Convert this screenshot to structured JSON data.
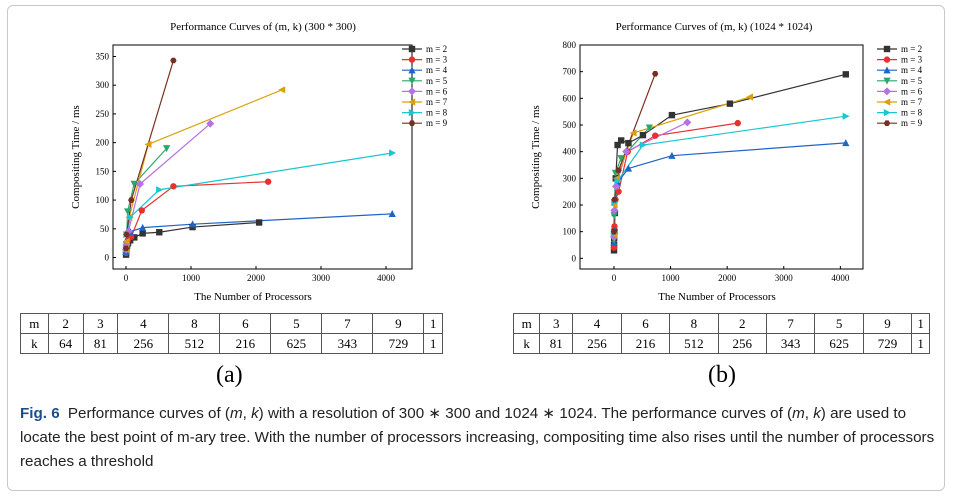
{
  "figure": {
    "panel_a_label": "(a)",
    "panel_b_label": "(b)",
    "caption": {
      "label": "Fig. 6",
      "part1": "Performance curves of (",
      "m": "m",
      "comma": ", ",
      "k": "k",
      "part2": ") with a resolution of 300 ∗ 300 and 1024 ∗ 1024. The performance curves of (",
      "part3": ") are used to locate the best point of m-ary tree. With the number of processors increasing, compositing time also rises until the number of processors reaches a threshold"
    }
  },
  "colors": {
    "m2": "#333333",
    "m3": "#e8302f",
    "m4": "#1f64c8",
    "m5": "#2aa86b",
    "m6": "#b472e4",
    "m7": "#d9a10c",
    "m8": "#17c7d2",
    "m9": "#7a2e22"
  },
  "chart_data": [
    {
      "type": "line",
      "title": "Performance Curves of (m, k) (300 * 300)",
      "xlabel": "The Number of Processors",
      "ylabel": "Compositing Time / ms",
      "xlim": [
        -200,
        4400
      ],
      "ylim": [
        -20,
        370
      ],
      "xticks": [
        0,
        1000,
        2000,
        3000,
        4000
      ],
      "yticks": [
        0,
        50,
        100,
        150,
        200,
        250,
        300,
        350
      ],
      "legend_position": "right",
      "series": [
        {
          "name": "m = 2",
          "color_key": "m2",
          "marker": "square",
          "x": [
            1,
            2,
            4,
            8,
            16,
            32,
            64,
            128,
            256,
            512,
            1024,
            2048
          ],
          "y": [
            5,
            8,
            12,
            16,
            20,
            25,
            30,
            35,
            42,
            44,
            53,
            61
          ]
        },
        {
          "name": "m = 3",
          "color_key": "m3",
          "marker": "circle",
          "x": [
            1,
            3,
            9,
            27,
            81,
            243,
            729,
            2187
          ],
          "y": [
            8,
            15,
            22,
            30,
            36,
            82,
            124,
            132
          ]
        },
        {
          "name": "m = 4",
          "color_key": "m4",
          "marker": "triangle-up",
          "x": [
            1,
            4,
            16,
            64,
            256,
            1024,
            4096
          ],
          "y": [
            10,
            16,
            28,
            45,
            52,
            58,
            76
          ]
        },
        {
          "name": "m = 5",
          "color_key": "m5",
          "marker": "triangle-down",
          "x": [
            1,
            5,
            25,
            125,
            625
          ],
          "y": [
            12,
            22,
            80,
            128,
            190
          ]
        },
        {
          "name": "m = 6",
          "color_key": "m6",
          "marker": "diamond",
          "x": [
            1,
            6,
            36,
            216,
            1296
          ],
          "y": [
            14,
            22,
            45,
            128,
            233
          ]
        },
        {
          "name": "m = 7",
          "color_key": "m7",
          "marker": "triangle-left",
          "x": [
            1,
            7,
            49,
            343,
            2401
          ],
          "y": [
            14,
            28,
            70,
            197,
            292
          ]
        },
        {
          "name": "m = 8",
          "color_key": "m8",
          "marker": "triangle-right",
          "x": [
            1,
            8,
            64,
            512,
            4096
          ],
          "y": [
            15,
            40,
            70,
            118,
            182
          ]
        },
        {
          "name": "m = 9",
          "color_key": "m9",
          "marker": "hexagon",
          "x": [
            1,
            9,
            81,
            729
          ],
          "y": [
            16,
            40,
            100,
            343
          ]
        }
      ]
    },
    {
      "type": "line",
      "title": "Performance Curves of (m, k) (1024 * 1024)",
      "xlabel": "The Number of Processors",
      "ylabel": "Compositing Time / ms",
      "xlim": [
        -600,
        4400
      ],
      "ylim": [
        -40,
        800
      ],
      "xticks": [
        0,
        1000,
        2000,
        3000,
        4000
      ],
      "yticks": [
        0,
        100,
        200,
        300,
        400,
        500,
        600,
        700,
        800
      ],
      "legend_position": "right",
      "series": [
        {
          "name": "m = 2",
          "color_key": "m2",
          "marker": "square",
          "x": [
            1,
            2,
            4,
            8,
            16,
            32,
            64,
            128,
            256,
            512,
            1024,
            2048,
            4096
          ],
          "y": [
            30,
            50,
            75,
            100,
            170,
            300,
            425,
            442,
            432,
            462,
            537,
            580,
            690
          ]
        },
        {
          "name": "m = 3",
          "color_key": "m3",
          "marker": "circle",
          "x": [
            1,
            3,
            9,
            27,
            81,
            243,
            729,
            2187
          ],
          "y": [
            40,
            80,
            120,
            220,
            250,
            400,
            460,
            507
          ]
        },
        {
          "name": "m = 4",
          "color_key": "m4",
          "marker": "triangle-up",
          "x": [
            1,
            4,
            16,
            64,
            256,
            1024,
            4096
          ],
          "y": [
            60,
            105,
            185,
            285,
            337,
            385,
            433
          ]
        },
        {
          "name": "m = 5",
          "color_key": "m5",
          "marker": "triangle-down",
          "x": [
            1,
            5,
            25,
            125,
            625
          ],
          "y": [
            70,
            160,
            320,
            375,
            490
          ]
        },
        {
          "name": "m = 6",
          "color_key": "m6",
          "marker": "diamond",
          "x": [
            1,
            6,
            36,
            216,
            1296
          ],
          "y": [
            80,
            180,
            270,
            400,
            510
          ]
        },
        {
          "name": "m = 7",
          "color_key": "m7",
          "marker": "triangle-left",
          "x": [
            1,
            7,
            49,
            343,
            2401
          ],
          "y": [
            90,
            200,
            300,
            470,
            605
          ]
        },
        {
          "name": "m = 8",
          "color_key": "m8",
          "marker": "triangle-right",
          "x": [
            1,
            8,
            64,
            512,
            4096
          ],
          "y": [
            95,
            210,
            290,
            425,
            533
          ]
        },
        {
          "name": "m = 9",
          "color_key": "m9",
          "marker": "hexagon",
          "x": [
            1,
            9,
            81,
            729
          ],
          "y": [
            100,
            220,
            330,
            692
          ]
        }
      ]
    },
    {
      "type": "table",
      "rows": [
        {
          "header": "m",
          "values": [
            "2",
            "3",
            "4",
            "8",
            "6",
            "5",
            "7",
            "9",
            "1"
          ]
        },
        {
          "header": "k",
          "values": [
            "64",
            "81",
            "256",
            "512",
            "216",
            "625",
            "343",
            "729",
            "1"
          ]
        }
      ]
    },
    {
      "type": "table",
      "rows": [
        {
          "header": "m",
          "values": [
            "3",
            "4",
            "6",
            "8",
            "2",
            "7",
            "5",
            "9",
            "1"
          ]
        },
        {
          "header": "k",
          "values": [
            "81",
            "256",
            "216",
            "512",
            "256",
            "343",
            "625",
            "729",
            "1"
          ]
        }
      ]
    }
  ]
}
